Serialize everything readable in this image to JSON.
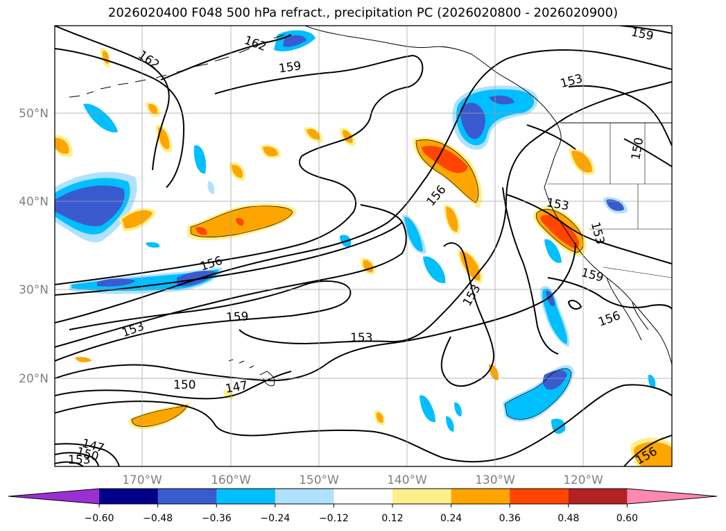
{
  "title": "2026020400 F048 500 hPa refract., precipitation PC (2026020800 - 2026020900)",
  "lat_labels": [
    "50°N",
    "40°N",
    "30°N",
    "20°N"
  ],
  "lon_labels": [
    "170°W",
    "160°W",
    "150°W",
    "140°W",
    "130°W",
    "120°W"
  ],
  "colorbar": {
    "ticks": [
      "−0.60",
      "−0.48",
      "−0.36",
      "−0.24",
      "−0.12",
      "0.12",
      "0.24",
      "0.36",
      "0.48",
      "0.60"
    ],
    "colors": [
      "#9b30d0",
      "#00008b",
      "#3a5bd0",
      "#00bfff",
      "#b0e2ff",
      "#ffffff",
      "#fff08c",
      "#ffa500",
      "#ff4500",
      "#b22222",
      "#ff88b0"
    ]
  },
  "contour_labels": [
    {
      "text": "162"
    },
    {
      "text": "162"
    },
    {
      "text": "159"
    },
    {
      "text": "159"
    },
    {
      "text": "153"
    },
    {
      "text": "150"
    },
    {
      "text": "156"
    },
    {
      "text": "153"
    },
    {
      "text": "156"
    },
    {
      "text": "153"
    },
    {
      "text": "159"
    },
    {
      "text": "153"
    },
    {
      "text": "153"
    },
    {
      "text": "159"
    },
    {
      "text": "156"
    },
    {
      "text": "153"
    },
    {
      "text": "150"
    },
    {
      "text": "147"
    },
    {
      "text": "147"
    },
    {
      "text": "150"
    },
    {
      "text": "153"
    },
    {
      "text": "156"
    }
  ]
}
